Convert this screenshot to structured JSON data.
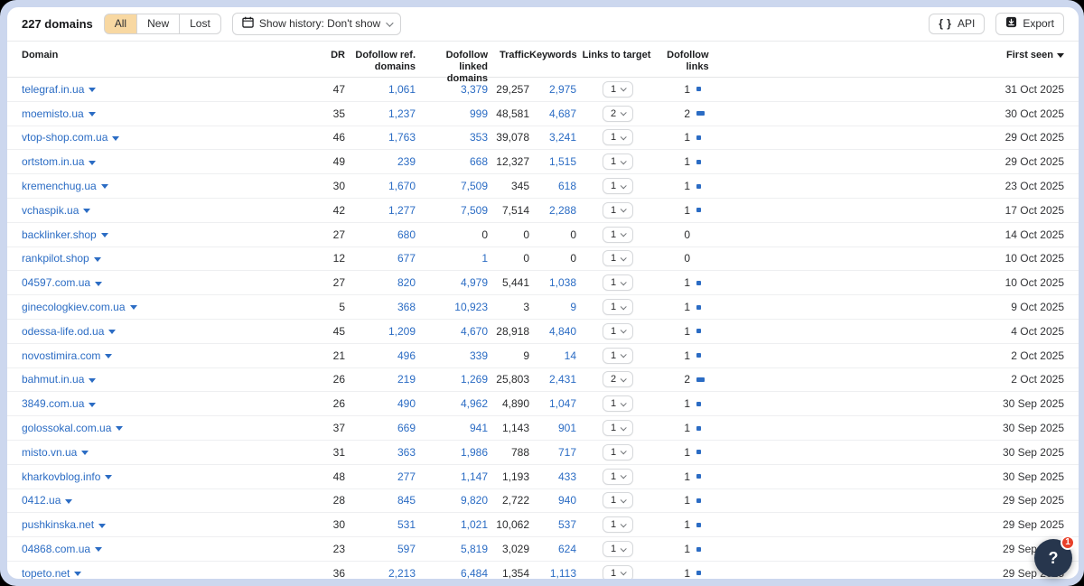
{
  "toolbar": {
    "count": "227 domains",
    "segments": [
      {
        "label": "All",
        "selected": true
      },
      {
        "label": "New",
        "selected": false
      },
      {
        "label": "Lost",
        "selected": false
      }
    ],
    "history_label": "Show history: Don't show",
    "api_label": "API",
    "export_label": "Export"
  },
  "table": {
    "headers": {
      "domain": "Domain",
      "dr": "DR",
      "ref": "Dofollow ref. domains",
      "linked": "Dofollow linked domains",
      "traffic": "Traffic",
      "keywords": "Keywords",
      "links_to_target": "Links to target",
      "dofollow_links": "Dofollow links",
      "first_seen": "First seen"
    },
    "rows": [
      {
        "domain": "telegraf.in.ua",
        "dr": "47",
        "ref": "1,061",
        "linked": "3,379",
        "traffic": "29,257",
        "keywords": "2,975",
        "links_to_target": "1",
        "dofollow_links": "1",
        "bar": 1,
        "first_seen": "31 Oct 2025"
      },
      {
        "domain": "moemisto.ua",
        "dr": "35",
        "ref": "1,237",
        "linked": "999",
        "traffic": "48,581",
        "keywords": "4,687",
        "links_to_target": "2",
        "dofollow_links": "2",
        "bar": 2,
        "first_seen": "30 Oct 2025"
      },
      {
        "domain": "vtop-shop.com.ua",
        "dr": "46",
        "ref": "1,763",
        "linked": "353",
        "traffic": "39,078",
        "keywords": "3,241",
        "links_to_target": "1",
        "dofollow_links": "1",
        "bar": 1,
        "first_seen": "29 Oct 2025"
      },
      {
        "domain": "ortstom.in.ua",
        "dr": "49",
        "ref": "239",
        "linked": "668",
        "traffic": "12,327",
        "keywords": "1,515",
        "links_to_target": "1",
        "dofollow_links": "1",
        "bar": 1,
        "first_seen": "29 Oct 2025"
      },
      {
        "domain": "kremenchug.ua",
        "dr": "30",
        "ref": "1,670",
        "linked": "7,509",
        "traffic": "345",
        "keywords": "618",
        "links_to_target": "1",
        "dofollow_links": "1",
        "bar": 1,
        "first_seen": "23 Oct 2025"
      },
      {
        "domain": "vchaspik.ua",
        "dr": "42",
        "ref": "1,277",
        "linked": "7,509",
        "traffic": "7,514",
        "keywords": "2,288",
        "links_to_target": "1",
        "dofollow_links": "1",
        "bar": 1,
        "first_seen": "17 Oct 2025"
      },
      {
        "domain": "backlinker.shop",
        "dr": "27",
        "ref": "680",
        "linked": "0",
        "traffic": "0",
        "keywords": "0",
        "links_to_target": "1",
        "dofollow_links": "0",
        "bar": 0,
        "first_seen": "14 Oct 2025"
      },
      {
        "domain": "rankpilot.shop",
        "dr": "12",
        "ref": "677",
        "linked": "1",
        "traffic": "0",
        "keywords": "0",
        "links_to_target": "1",
        "dofollow_links": "0",
        "bar": 0,
        "first_seen": "10 Oct 2025"
      },
      {
        "domain": "04597.com.ua",
        "dr": "27",
        "ref": "820",
        "linked": "4,979",
        "traffic": "5,441",
        "keywords": "1,038",
        "links_to_target": "1",
        "dofollow_links": "1",
        "bar": 1,
        "first_seen": "10 Oct 2025"
      },
      {
        "domain": "ginecologkiev.com.ua",
        "dr": "5",
        "ref": "368",
        "linked": "10,923",
        "traffic": "3",
        "keywords": "9",
        "links_to_target": "1",
        "dofollow_links": "1",
        "bar": 1,
        "first_seen": "9 Oct 2025"
      },
      {
        "domain": "odessa-life.od.ua",
        "dr": "45",
        "ref": "1,209",
        "linked": "4,670",
        "traffic": "28,918",
        "keywords": "4,840",
        "links_to_target": "1",
        "dofollow_links": "1",
        "bar": 1,
        "first_seen": "4 Oct 2025"
      },
      {
        "domain": "novostimira.com",
        "dr": "21",
        "ref": "496",
        "linked": "339",
        "traffic": "9",
        "keywords": "14",
        "links_to_target": "1",
        "dofollow_links": "1",
        "bar": 1,
        "first_seen": "2 Oct 2025"
      },
      {
        "domain": "bahmut.in.ua",
        "dr": "26",
        "ref": "219",
        "linked": "1,269",
        "traffic": "25,803",
        "keywords": "2,431",
        "links_to_target": "2",
        "dofollow_links": "2",
        "bar": 2,
        "first_seen": "2 Oct 2025"
      },
      {
        "domain": "3849.com.ua",
        "dr": "26",
        "ref": "490",
        "linked": "4,962",
        "traffic": "4,890",
        "keywords": "1,047",
        "links_to_target": "1",
        "dofollow_links": "1",
        "bar": 1,
        "first_seen": "30 Sep 2025"
      },
      {
        "domain": "golossokal.com.ua",
        "dr": "37",
        "ref": "669",
        "linked": "941",
        "traffic": "1,143",
        "keywords": "901",
        "links_to_target": "1",
        "dofollow_links": "1",
        "bar": 1,
        "first_seen": "30 Sep 2025"
      },
      {
        "domain": "misto.vn.ua",
        "dr": "31",
        "ref": "363",
        "linked": "1,986",
        "traffic": "788",
        "keywords": "717",
        "links_to_target": "1",
        "dofollow_links": "1",
        "bar": 1,
        "first_seen": "30 Sep 2025"
      },
      {
        "domain": "kharkovblog.info",
        "dr": "48",
        "ref": "277",
        "linked": "1,147",
        "traffic": "1,193",
        "keywords": "433",
        "links_to_target": "1",
        "dofollow_links": "1",
        "bar": 1,
        "first_seen": "30 Sep 2025"
      },
      {
        "domain": "0412.ua",
        "dr": "28",
        "ref": "845",
        "linked": "9,820",
        "traffic": "2,722",
        "keywords": "940",
        "links_to_target": "1",
        "dofollow_links": "1",
        "bar": 1,
        "first_seen": "29 Sep 2025"
      },
      {
        "domain": "pushkinska.net",
        "dr": "30",
        "ref": "531",
        "linked": "1,021",
        "traffic": "10,062",
        "keywords": "537",
        "links_to_target": "1",
        "dofollow_links": "1",
        "bar": 1,
        "first_seen": "29 Sep 2025"
      },
      {
        "domain": "04868.com.ua",
        "dr": "23",
        "ref": "597",
        "linked": "5,819",
        "traffic": "3,029",
        "keywords": "624",
        "links_to_target": "1",
        "dofollow_links": "1",
        "bar": 1,
        "first_seen": "29 Sep 2025"
      },
      {
        "domain": "topeto.net",
        "dr": "36",
        "ref": "2,213",
        "linked": "6,484",
        "traffic": "1,354",
        "keywords": "1,113",
        "links_to_target": "1",
        "dofollow_links": "1",
        "bar": 1,
        "first_seen": "29 Sep 2025"
      }
    ]
  },
  "help": {
    "label": "?",
    "badge": "1"
  },
  "colors": {
    "link_blue": "#2b6cc4",
    "segment_selected_bg": "#f8d8a2",
    "badge_red": "#e8402a",
    "help_navy": "#27364d",
    "page_lavender": "#ccd7ee"
  }
}
